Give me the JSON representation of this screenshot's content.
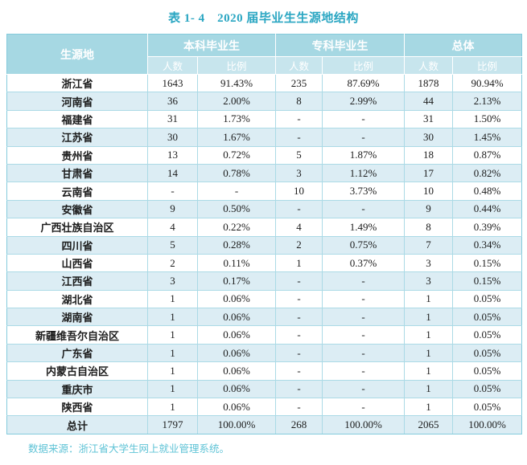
{
  "page": {
    "title": "表 1- 4　2020 届毕业生生源地结构",
    "footer": "数据来源：浙江省大学生网上就业管理系统。"
  },
  "colors": {
    "title_text": "#2aa6c2",
    "header_bg": "#a6d8e3",
    "subheader_bg": "#c7e5ed",
    "stripe_bg": "#dcedf4",
    "border": "#abdae6",
    "outer_border": "#84cbdc",
    "footer_text": "#5fc3d6"
  },
  "table": {
    "header": {
      "origin_label": "生源地",
      "groups": [
        {
          "label": "本科毕业生"
        },
        {
          "label": "专科毕业生"
        },
        {
          "label": "总体"
        }
      ],
      "sub_labels": [
        "人数",
        "比例",
        "人数",
        "比例",
        "人数",
        "比例"
      ]
    },
    "rows": [
      {
        "region": "浙江省",
        "values": [
          "1643",
          "91.43%",
          "235",
          "87.69%",
          "1878",
          "90.94%"
        ]
      },
      {
        "region": "河南省",
        "values": [
          "36",
          "2.00%",
          "8",
          "2.99%",
          "44",
          "2.13%"
        ]
      },
      {
        "region": "福建省",
        "values": [
          "31",
          "1.73%",
          "-",
          "-",
          "31",
          "1.50%"
        ]
      },
      {
        "region": "江苏省",
        "values": [
          "30",
          "1.67%",
          "-",
          "-",
          "30",
          "1.45%"
        ]
      },
      {
        "region": "贵州省",
        "values": [
          "13",
          "0.72%",
          "5",
          "1.87%",
          "18",
          "0.87%"
        ]
      },
      {
        "region": "甘肃省",
        "values": [
          "14",
          "0.78%",
          "3",
          "1.12%",
          "17",
          "0.82%"
        ]
      },
      {
        "region": "云南省",
        "values": [
          "-",
          "-",
          "10",
          "3.73%",
          "10",
          "0.48%"
        ]
      },
      {
        "region": "安徽省",
        "values": [
          "9",
          "0.50%",
          "-",
          "-",
          "9",
          "0.44%"
        ]
      },
      {
        "region": "广西壮族自治区",
        "values": [
          "4",
          "0.22%",
          "4",
          "1.49%",
          "8",
          "0.39%"
        ]
      },
      {
        "region": "四川省",
        "values": [
          "5",
          "0.28%",
          "2",
          "0.75%",
          "7",
          "0.34%"
        ]
      },
      {
        "region": "山西省",
        "values": [
          "2",
          "0.11%",
          "1",
          "0.37%",
          "3",
          "0.15%"
        ]
      },
      {
        "region": "江西省",
        "values": [
          "3",
          "0.17%",
          "-",
          "-",
          "3",
          "0.15%"
        ]
      },
      {
        "region": "湖北省",
        "values": [
          "1",
          "0.06%",
          "-",
          "-",
          "1",
          "0.05%"
        ]
      },
      {
        "region": "湖南省",
        "values": [
          "1",
          "0.06%",
          "-",
          "-",
          "1",
          "0.05%"
        ]
      },
      {
        "region": "新疆维吾尔自治区",
        "values": [
          "1",
          "0.06%",
          "-",
          "-",
          "1",
          "0.05%"
        ]
      },
      {
        "region": "广东省",
        "values": [
          "1",
          "0.06%",
          "-",
          "-",
          "1",
          "0.05%"
        ]
      },
      {
        "region": "内蒙古自治区",
        "values": [
          "1",
          "0.06%",
          "-",
          "-",
          "1",
          "0.05%"
        ]
      },
      {
        "region": "重庆市",
        "values": [
          "1",
          "0.06%",
          "-",
          "-",
          "1",
          "0.05%"
        ]
      },
      {
        "region": "陕西省",
        "values": [
          "1",
          "0.06%",
          "-",
          "-",
          "1",
          "0.05%"
        ]
      },
      {
        "region": "总计",
        "values": [
          "1797",
          "100.00%",
          "268",
          "100.00%",
          "2065",
          "100.00%"
        ],
        "total": true
      }
    ]
  }
}
